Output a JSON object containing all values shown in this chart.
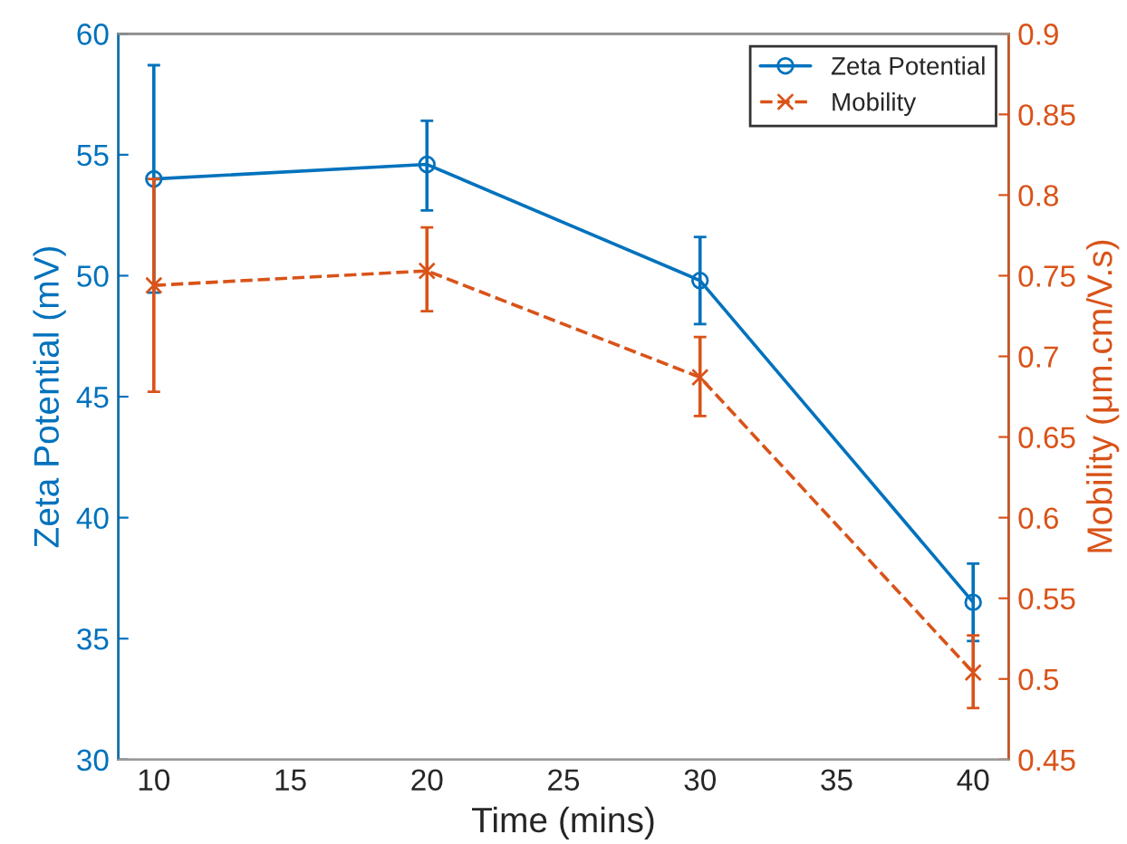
{
  "chart_data": {
    "type": "line",
    "xlabel": "Time (mins)",
    "ylabel": "Zeta Potential (mV)",
    "y2label": "Mobility (μm.cm/V.s)",
    "x": [
      10,
      20,
      30,
      40
    ],
    "series": [
      {
        "name": "Zeta Potential",
        "color": "#0072bd",
        "values": [
          54.0,
          54.6,
          49.8,
          36.5
        ],
        "errors": [
          [
            49.3,
            58.7
          ],
          [
            52.7,
            56.4
          ],
          [
            48.0,
            51.6
          ],
          [
            34.9,
            38.1
          ]
        ],
        "marker": "circle",
        "line_style": "solid"
      },
      {
        "name": "Mobility",
        "color": "#d95319",
        "axis": "y2",
        "values": [
          0.744,
          0.753,
          0.687,
          0.504
        ],
        "errors": [
          [
            0.678,
            0.81
          ],
          [
            0.728,
            0.78
          ],
          [
            0.663,
            0.712
          ],
          [
            0.482,
            0.527
          ]
        ],
        "marker": "cross",
        "line_style": "dashed"
      }
    ],
    "xlim": [
      8.7,
      41.3
    ],
    "xticks": [
      10,
      15,
      20,
      25,
      30,
      35,
      40
    ],
    "ylim": [
      30,
      60
    ],
    "yticks": [
      30,
      35,
      40,
      45,
      50,
      55,
      60
    ],
    "y2lim": [
      0.45,
      0.9
    ],
    "y2ticks": [
      0.45,
      0.5,
      0.55,
      0.6,
      0.65,
      0.7,
      0.75,
      0.8,
      0.85,
      0.9
    ],
    "grid": false,
    "legend": "top right"
  }
}
